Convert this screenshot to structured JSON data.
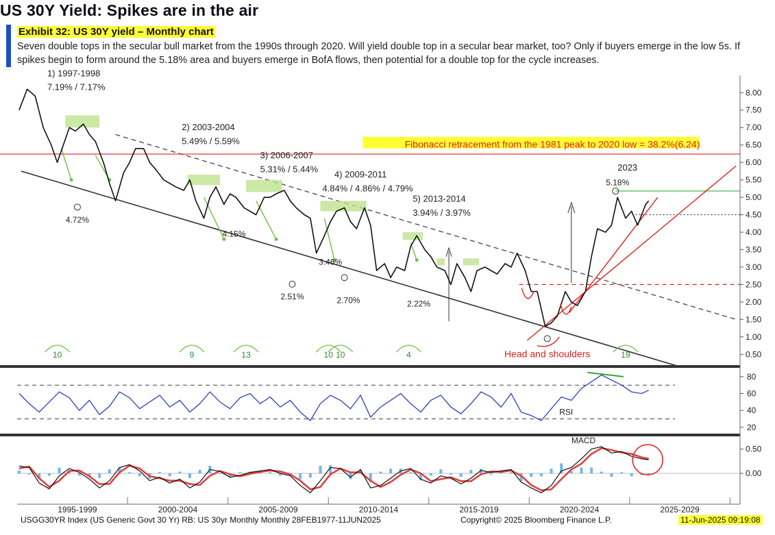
{
  "header": {
    "title": "US 30Y Yield: Spikes are in the air",
    "exhibit": "Exhibit 32: US 30Y yield – Monthly chart",
    "subtitle": "Seven double tops in the secular bull market from the 1990s through 2020. Will yield double top in a secular bear market, too? Only if buyers emerge in the low 5s. If spikes begin to form around the 5.18% area and buyers emerge in BofA flows, then potential for a double top for the cycle increases."
  },
  "footer": {
    "source": "USGG30YR Index (US Generic Govt 30 Yr) RB: US 30yr Monthly  Monthly 28FEB1977-11JUN2025",
    "copyright": "Copyright© 2025 Bloomberg Finance L.P.",
    "timestamp": "11-Jun-2025 09:19:08"
  },
  "colors": {
    "price": "#111111",
    "box": "#b9e08a",
    "arrow": "#6cc24a",
    "fib": "#e02020",
    "rsi": "#2b3fbf",
    "macd": "#111111",
    "signal": "#e04040",
    "hist": "#4a9de0",
    "highlight": "#ffff33"
  },
  "chart_data": [
    {
      "type": "line",
      "panel": "price",
      "ylim": [
        0.25,
        8.3
      ],
      "xlim": [
        1994.0,
        2030.0
      ],
      "yticks": [
        "8.00",
        "7.50",
        "7.00",
        "6.50",
        "6.00",
        "5.50",
        "5.00",
        "4.50",
        "4.00",
        "3.50",
        "3.00",
        "2.50",
        "2.00",
        "1.50",
        "1.00",
        "0.50"
      ],
      "xticks": [
        {
          "label": "1995-1999",
          "x": 1997.0
        },
        {
          "label": "2000-2004",
          "x": 2002.0
        },
        {
          "label": "2005-2009",
          "x": 2007.0
        },
        {
          "label": "2010-2014",
          "x": 2012.0
        },
        {
          "label": "2015-2019",
          "x": 2017.0
        },
        {
          "label": "2020-2024",
          "x": 2022.0
        },
        {
          "label": "2025-2029",
          "x": 2027.0
        }
      ],
      "series": [
        {
          "x": [
            1994.1,
            1994.5,
            1994.9,
            1995.3,
            1995.7,
            1996.0,
            1996.3,
            1996.6,
            1996.9,
            1997.3,
            1997.6,
            1997.9,
            1998.3,
            1998.6,
            1998.9,
            1999.3,
            1999.6,
            1999.9,
            2000.3,
            2000.6,
            2000.9,
            2001.3,
            2001.6,
            2001.9,
            2002.3,
            2002.6,
            2002.9,
            2003.3,
            2003.6,
            2003.9,
            2004.3,
            2004.6,
            2004.9,
            2005.3,
            2005.6,
            2005.9,
            2006.3,
            2006.6,
            2006.9,
            2007.3,
            2007.6,
            2007.9,
            2008.3,
            2008.6,
            2008.9,
            2009.3,
            2009.6,
            2009.9,
            2010.3,
            2010.6,
            2010.9,
            2011.3,
            2011.6,
            2011.9,
            2012.3,
            2012.6,
            2012.9,
            2013.3,
            2013.6,
            2013.9,
            2014.3,
            2014.6,
            2014.9,
            2015.3,
            2015.6,
            2015.9,
            2016.3,
            2016.6,
            2016.9,
            2017.3,
            2017.6,
            2017.9,
            2018.3,
            2018.6,
            2018.9,
            2019.3,
            2019.6,
            2019.9,
            2020.3,
            2020.6,
            2020.9,
            2021.3,
            2021.6,
            2021.9,
            2022.3,
            2022.6,
            2022.9,
            2023.3,
            2023.6,
            2023.9,
            2024.3,
            2024.6,
            2024.9,
            2025.3,
            2025.45
          ],
          "values": [
            7.5,
            8.1,
            7.9,
            7.0,
            6.5,
            6.0,
            6.5,
            7.0,
            6.9,
            7.1,
            6.8,
            6.6,
            6.0,
            5.4,
            4.9,
            5.7,
            6.0,
            6.4,
            6.4,
            6.0,
            5.8,
            5.5,
            5.4,
            5.3,
            5.2,
            5.5,
            4.9,
            4.4,
            5.0,
            5.3,
            4.8,
            5.1,
            5.0,
            4.7,
            4.6,
            4.5,
            5.0,
            5.0,
            5.1,
            5.2,
            4.9,
            4.7,
            4.5,
            4.4,
            3.4,
            3.9,
            4.3,
            4.6,
            4.7,
            4.3,
            4.1,
            4.7,
            4.2,
            2.9,
            3.1,
            2.7,
            3.0,
            2.9,
            3.6,
            3.9,
            3.5,
            3.3,
            3.0,
            2.9,
            2.5,
            3.1,
            2.7,
            2.3,
            2.9,
            3.0,
            2.9,
            2.8,
            3.1,
            3.0,
            3.4,
            2.9,
            2.3,
            2.3,
            1.3,
            1.4,
            1.6,
            2.3,
            2.0,
            1.9,
            2.3,
            3.3,
            4.1,
            4.0,
            4.2,
            5.0,
            4.4,
            4.6,
            4.2,
            4.8,
            4.9
          ],
          "name": ""
        }
      ],
      "annotations": [
        {
          "text": "1) 1997-1998",
          "x": 1995.5,
          "y": 8.55
        },
        {
          "text": "7.19% / 7.17%",
          "x": 1995.5,
          "y": 8.15
        },
        {
          "text": "2) 2003-2004",
          "x": 2002.2,
          "y": 7.0
        },
        {
          "text": "5.49% / 5.59%",
          "x": 2002.2,
          "y": 6.6
        },
        {
          "text": "3) 2006-2007",
          "x": 2006.1,
          "y": 6.2
        },
        {
          "text": "5.31% / 5.44%",
          "x": 2006.1,
          "y": 5.8
        },
        {
          "text": "4) 2009-2011",
          "x": 2009.8,
          "y": 5.65
        },
        {
          "text": "4.84% / 4.86% / 4.79%",
          "x": 2009.2,
          "y": 5.25
        },
        {
          "text": "5) 2013-2014",
          "x": 2013.7,
          "y": 4.95
        },
        {
          "text": "3.94% / 3.97%",
          "x": 2013.7,
          "y": 4.55
        },
        {
          "text": "2023",
          "x": 2023.9,
          "y": 5.85
        },
        {
          "text": "5.18%",
          "x": 2023.9,
          "y": 5.42
        },
        {
          "text": "4.72%",
          "x": 1997.0,
          "y": 4.35
        },
        {
          "text": "4.15%",
          "x": 2004.8,
          "y": 3.95
        },
        {
          "text": "3.46%",
          "x": 2009.6,
          "y": 3.15
        },
        {
          "text": "2.51%",
          "x": 2007.7,
          "y": 2.15
        },
        {
          "text": "2.70%",
          "x": 2010.5,
          "y": 2.05
        },
        {
          "text": "2.22%",
          "x": 2014.0,
          "y": 1.95
        },
        {
          "text": "Head and shoulders",
          "x": 2020.4,
          "y": 0.5
        },
        {
          "text": "Fibonacci retracement from the 1981 peak to 2020 low = 38.2%(6.24)",
          "x": 2028.0,
          "y": 6.5
        }
      ],
      "cycle_counts": [
        {
          "text": "10",
          "x": 1996.0
        },
        {
          "text": "9",
          "x": 2002.7
        },
        {
          "text": "13",
          "x": 2005.4
        },
        {
          "text": "10",
          "x": 2009.5
        },
        {
          "text": "10",
          "x": 2010.1
        },
        {
          "text": "4",
          "x": 2013.5
        },
        {
          "text": "19",
          "x": 2024.3
        }
      ],
      "levels": [
        {
          "name": "fib",
          "y": 6.24
        },
        {
          "name": "peak",
          "y": 5.18
        },
        {
          "name": "dotted",
          "y": 4.5
        },
        {
          "name": "neckline",
          "y": 2.5
        }
      ]
    },
    {
      "type": "line",
      "panel": "rsi",
      "ylim": [
        15,
        88
      ],
      "yticks": [
        "80",
        "60",
        "40",
        "20"
      ],
      "label": "RSI",
      "levels": [
        70,
        30
      ],
      "x": [
        1994.1,
        1994.6,
        1995.1,
        1995.6,
        1996.1,
        1996.6,
        1997.1,
        1997.6,
        1998.1,
        1998.6,
        1999.1,
        1999.6,
        2000.1,
        2000.6,
        2001.1,
        2001.6,
        2002.1,
        2002.6,
        2003.1,
        2003.6,
        2004.1,
        2004.6,
        2005.1,
        2005.6,
        2006.1,
        2006.6,
        2007.1,
        2007.6,
        2008.1,
        2008.6,
        2009.1,
        2009.6,
        2010.1,
        2010.6,
        2011.1,
        2011.6,
        2012.1,
        2012.6,
        2013.1,
        2013.6,
        2014.1,
        2014.6,
        2015.1,
        2015.6,
        2016.1,
        2016.6,
        2017.1,
        2017.6,
        2018.1,
        2018.6,
        2019.1,
        2019.6,
        2020.1,
        2020.6,
        2021.1,
        2021.6,
        2022.1,
        2022.6,
        2023.1,
        2023.6,
        2024.1,
        2024.6,
        2025.1,
        2025.45
      ],
      "values": [
        60,
        48,
        38,
        50,
        62,
        55,
        40,
        52,
        35,
        45,
        62,
        55,
        42,
        50,
        58,
        44,
        52,
        38,
        48,
        62,
        50,
        42,
        55,
        60,
        48,
        56,
        44,
        52,
        38,
        28,
        48,
        58,
        52,
        42,
        58,
        32,
        44,
        52,
        60,
        48,
        38,
        52,
        58,
        44,
        36,
        48,
        62,
        56,
        44,
        60,
        38,
        34,
        28,
        42,
        56,
        52,
        66,
        74,
        82,
        76,
        70,
        62,
        60,
        64
      ]
    },
    {
      "type": "line",
      "panel": "macd",
      "ylim": [
        -0.55,
        0.72
      ],
      "yticks": [
        "0.50",
        "0.00"
      ],
      "label": "MACD",
      "x": [
        1994.1,
        1994.6,
        1995.1,
        1995.6,
        1996.1,
        1996.6,
        1997.1,
        1997.6,
        1998.1,
        1998.6,
        1999.1,
        1999.6,
        2000.1,
        2000.6,
        2001.1,
        2001.6,
        2002.1,
        2002.6,
        2003.1,
        2003.6,
        2004.1,
        2004.6,
        2005.1,
        2005.6,
        2006.1,
        2006.6,
        2007.1,
        2007.6,
        2008.1,
        2008.6,
        2009.1,
        2009.6,
        2010.1,
        2010.6,
        2011.1,
        2011.6,
        2012.1,
        2012.6,
        2013.1,
        2013.6,
        2014.1,
        2014.6,
        2015.1,
        2015.6,
        2016.1,
        2016.6,
        2017.1,
        2017.6,
        2018.1,
        2018.6,
        2019.1,
        2019.6,
        2020.1,
        2020.6,
        2021.1,
        2021.6,
        2022.1,
        2022.6,
        2023.1,
        2023.6,
        2024.1,
        2024.6,
        2025.1,
        2025.45
      ],
      "series": [
        {
          "name": "",
          "values": [
            0.15,
            0.12,
            -0.2,
            -0.32,
            -0.05,
            0.1,
            0.02,
            -0.12,
            -0.3,
            -0.15,
            0.12,
            0.18,
            0.05,
            -0.15,
            -0.08,
            -0.2,
            -0.12,
            -0.3,
            -0.18,
            0.08,
            0.04,
            -0.08,
            -0.04,
            0.02,
            0.05,
            0.08,
            0.0,
            -0.05,
            -0.25,
            -0.4,
            -0.15,
            0.12,
            0.1,
            -0.08,
            0.08,
            -0.3,
            -0.25,
            -0.1,
            0.05,
            0.1,
            -0.12,
            -0.2,
            -0.05,
            -0.1,
            -0.22,
            -0.1,
            0.06,
            0.02,
            0.05,
            0.08,
            -0.18,
            -0.3,
            -0.4,
            -0.25,
            0.05,
            0.12,
            0.3,
            0.5,
            0.55,
            0.42,
            0.45,
            0.35,
            0.3,
            0.28
          ]
        },
        {
          "name": "",
          "values": [
            0.1,
            0.14,
            -0.1,
            -0.28,
            -0.15,
            0.05,
            0.06,
            -0.06,
            -0.22,
            -0.22,
            0.02,
            0.16,
            0.1,
            -0.06,
            -0.1,
            -0.15,
            -0.15,
            -0.22,
            -0.24,
            -0.05,
            0.05,
            -0.02,
            -0.06,
            -0.01,
            0.03,
            0.06,
            0.04,
            -0.02,
            -0.15,
            -0.33,
            -0.28,
            -0.02,
            0.1,
            0.02,
            0.02,
            -0.15,
            -0.28,
            -0.18,
            -0.03,
            0.08,
            0.0,
            -0.16,
            -0.12,
            -0.08,
            -0.16,
            -0.16,
            -0.02,
            0.04,
            0.03,
            0.06,
            -0.05,
            -0.24,
            -0.35,
            -0.33,
            -0.12,
            0.08,
            0.2,
            0.4,
            0.52,
            0.48,
            0.43,
            0.4,
            0.33,
            0.3
          ]
        }
      ]
    }
  ]
}
